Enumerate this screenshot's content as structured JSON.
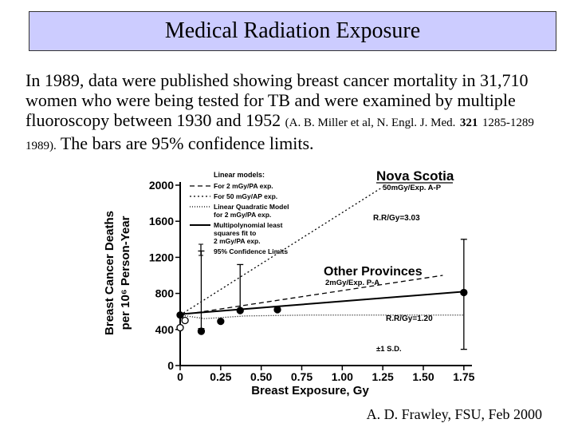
{
  "slide": {
    "title": "Medical Radiation Exposure",
    "body": {
      "main": "In 1989, data were published showing breast cancer mortality in 31,710 women who were being tested for TB and were examined by multiple fluoroscopy between 1930 and 1952",
      "cite_a": "(A. B. Miller et al, N. Engl. J. Med.",
      "cite_vol": "321",
      "cite_b": "1285-1289 1989).",
      "tail": "The bars are 95% confidence limits."
    },
    "credit": "A. D. Frawley, FSU, Feb 2000"
  },
  "chart_data": {
    "type": "line",
    "xlabel": "Breast Exposure, Gy",
    "ylabel_line1": "Breast Cancer Deaths",
    "ylabel_line2": "per 10⁶ Person-Year",
    "xlim": [
      0,
      1.8
    ],
    "ylim": [
      0,
      2000
    ],
    "x_ticks": [
      "0",
      "0.25",
      "0.50",
      "0.75",
      "1.00",
      "1.25",
      "1.50",
      "1.75"
    ],
    "x_tick_values": [
      0,
      0.25,
      0.5,
      0.75,
      1.0,
      1.25,
      1.5,
      1.75
    ],
    "y_ticks": [
      "0",
      "400",
      "800",
      "1200",
      "1600",
      "2000"
    ],
    "y_tick_values": [
      0,
      400,
      800,
      1200,
      1600,
      2000
    ],
    "legend": {
      "header": "Linear models:",
      "items": [
        {
          "label": "For 2 mGy/PA exp.",
          "style": "dashed"
        },
        {
          "label": "For 50 mGy/AP exp.",
          "style": "dotted"
        },
        {
          "label": "Linear Quadratic Model for 2 mGy/PA exp.",
          "style": "dotted-fine"
        },
        {
          "label": "Multipolynomial least squares fit to 2 mGy/PA exp.",
          "style": "solid"
        },
        {
          "label": "95% Confidence Limits",
          "style": "errorbar"
        }
      ]
    },
    "annotations": {
      "nova_scotia": "Nova Scotia",
      "nova_scotia_sub": "50mGy/Exp. A-P",
      "rr_nova": "R.R/Gy=3.03",
      "other_provinces": "Other Provinces",
      "other_sub": "2mGy/Exp. P-A",
      "rr_other": "R.R/Gy=1.20",
      "sd_note": "±1 S.D."
    },
    "series": [
      {
        "style": "filled",
        "points": [
          {
            "x": 0.0,
            "y": 560
          },
          {
            "x": 0.13,
            "y": 380
          },
          {
            "x": 0.25,
            "y": 490
          },
          {
            "x": 0.37,
            "y": 610
          },
          {
            "x": 0.6,
            "y": 620
          },
          {
            "x": 1.75,
            "y": 810
          }
        ],
        "errors": [
          [
            410,
            1270
          ],
          [
            620,
            1120
          ],
          [
            180,
            1400
          ]
        ]
      },
      {
        "style": "open",
        "points": [
          {
            "x": 0.0,
            "y": 420
          },
          {
            "x": 0.03,
            "y": 500
          }
        ]
      }
    ],
    "lines": [
      {
        "style": "solid",
        "x": [
          0,
          1.75
        ],
        "y": [
          570,
          820
        ]
      },
      {
        "style": "dashed",
        "x": [
          0,
          1.62
        ],
        "y": [
          560,
          1000
        ]
      },
      {
        "style": "dotted",
        "x": [
          0,
          1.25
        ],
        "y": [
          560,
          1980
        ]
      },
      {
        "style": "dotted-fine",
        "x": [
          0,
          0.15,
          0.4,
          0.8,
          1.75
        ],
        "y": [
          560,
          520,
          550,
          560,
          560
        ]
      }
    ]
  }
}
